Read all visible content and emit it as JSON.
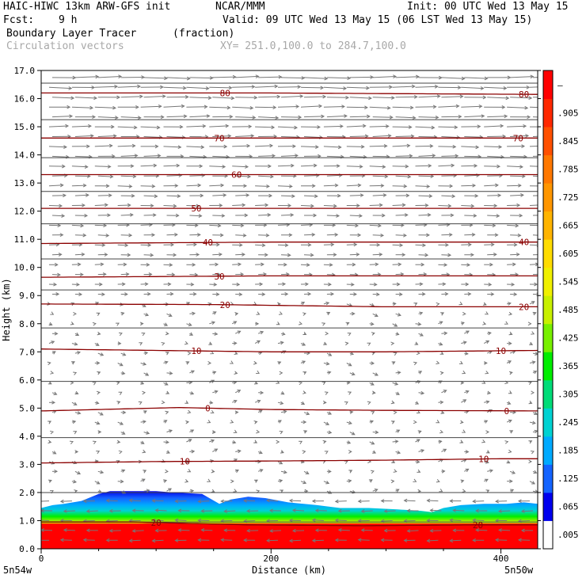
{
  "header": {
    "model": "HAIC-HIWC 13km ARW-GFS init",
    "org": "NCAR/MMM",
    "init": "Init: 00 UTC Wed 13 May 15",
    "fcst_label": "Fcst:",
    "fcst_value": "9 h",
    "valid": "Valid: 09 UTC Wed 13 May 15 (06 LST Wed 13 May 15)",
    "field_name": "Boundary Layer Tracer",
    "field_units": "(fraction)",
    "overlay_name": "Circulation vectors",
    "xy_range": "XY= 251.0,100.0 to 284.7,100.0"
  },
  "chart_data": {
    "type": "heatmap",
    "xlabel": "Distance (km)",
    "ylabel": "Height (km)",
    "xlim": [
      0,
      432
    ],
    "ylim": [
      0,
      17
    ],
    "x_ticks": [
      0,
      200,
      400
    ],
    "y_ticks": [
      "0.0",
      "1.0",
      "2.0",
      "3.0",
      "4.0",
      "5.0",
      "6.0",
      "7.0",
      "8.0",
      "9.0",
      "10.0",
      "11.0",
      "12.0",
      "13.0",
      "14.0",
      "15.0",
      "16.0",
      "17.0"
    ],
    "left_endpoint": "5n54w",
    "right_endpoint": "5n50w",
    "colorbar": {
      "labels": [
        ".005",
        ".065",
        ".125",
        ".185",
        ".245",
        ".305",
        ".365",
        ".425",
        ".485",
        ".545",
        ".605",
        ".665",
        ".725",
        ".785",
        ".845",
        ".905",
        "–"
      ],
      "colors": [
        "#ffffff",
        "#0000ee",
        "#1464ff",
        "#00aaff",
        "#00d2d2",
        "#00dc78",
        "#00ee00",
        "#78f000",
        "#c8f000",
        "#f0f000",
        "#ffdc00",
        "#ffb400",
        "#ff9600",
        "#ff7800",
        "#ff5000",
        "#ff2800",
        "#ff0000"
      ]
    },
    "tracer_top_km": [
      [
        0,
        1.45
      ],
      [
        10,
        1.55
      ],
      [
        20,
        1.6
      ],
      [
        35,
        1.7
      ],
      [
        50,
        1.95
      ],
      [
        60,
        2.05
      ],
      [
        80,
        2.05
      ],
      [
        100,
        2.05
      ],
      [
        115,
        2.0
      ],
      [
        140,
        1.95
      ],
      [
        155,
        1.6
      ],
      [
        165,
        1.75
      ],
      [
        180,
        1.85
      ],
      [
        195,
        1.8
      ],
      [
        215,
        1.65
      ],
      [
        240,
        1.55
      ],
      [
        260,
        1.45
      ],
      [
        285,
        1.45
      ],
      [
        310,
        1.4
      ],
      [
        330,
        1.35
      ],
      [
        340,
        1.3
      ],
      [
        350,
        1.45
      ],
      [
        365,
        1.55
      ],
      [
        385,
        1.6
      ],
      [
        405,
        1.6
      ],
      [
        420,
        1.65
      ],
      [
        432,
        1.6
      ]
    ],
    "temperature_contours": [
      {
        "value": 20,
        "label": "20",
        "label_x_km": [
          100,
          380
        ],
        "y_km": [
          [
            0,
            0.95
          ],
          [
            80,
            0.95
          ],
          [
            180,
            0.85
          ],
          [
            280,
            0.82
          ],
          [
            380,
            0.85
          ],
          [
            432,
            0.85
          ]
        ]
      },
      {
        "value": 10,
        "label": "10",
        "label_x_km": [
          125,
          385
        ],
        "y_km": [
          [
            0,
            3.05
          ],
          [
            100,
            3.1
          ],
          [
            200,
            3.12
          ],
          [
            300,
            3.15
          ],
          [
            400,
            3.2
          ],
          [
            432,
            3.2
          ]
        ]
      },
      {
        "value": 0,
        "label": "0",
        "label_x_km": [
          145,
          405
        ],
        "y_km": [
          [
            0,
            4.9
          ],
          [
            50,
            4.95
          ],
          [
            120,
            5.02
          ],
          [
            200,
            4.95
          ],
          [
            300,
            4.92
          ],
          [
            432,
            4.9
          ]
        ]
      },
      {
        "value": -10,
        "label": "10",
        "label_x_km": [
          135,
          400
        ],
        "y_km": [
          [
            0,
            7.1
          ],
          [
            100,
            7.05
          ],
          [
            200,
            7.0
          ],
          [
            300,
            7.0
          ],
          [
            432,
            7.05
          ]
        ]
      },
      {
        "value": -20,
        "label": "20",
        "label_x_km": [
          160,
          420
        ],
        "y_km": [
          [
            0,
            8.7
          ],
          [
            150,
            8.68
          ],
          [
            300,
            8.6
          ],
          [
            432,
            8.6
          ]
        ]
      },
      {
        "value": -30,
        "label": "30",
        "label_x_km": [
          155,
          0
        ],
        "y_km": [
          [
            0,
            9.65
          ],
          [
            200,
            9.7
          ],
          [
            432,
            9.7
          ]
        ]
      },
      {
        "value": -40,
        "label": "40",
        "label_x_km": [
          145,
          420
        ],
        "y_km": [
          [
            0,
            10.85
          ],
          [
            200,
            10.9
          ],
          [
            432,
            10.9
          ]
        ]
      },
      {
        "value": -50,
        "label": "50",
        "label_x_km": [
          135,
          0
        ],
        "y_km": [
          [
            0,
            12.1
          ],
          [
            200,
            12.1
          ],
          [
            432,
            12.1
          ]
        ]
      },
      {
        "value": -60,
        "label": "60",
        "label_x_km": [
          170,
          0
        ],
        "y_km": [
          [
            0,
            13.3
          ],
          [
            200,
            13.3
          ],
          [
            432,
            13.3
          ]
        ]
      },
      {
        "value": -70,
        "label": "70",
        "label_x_km": [
          155,
          415
        ],
        "y_km": [
          [
            0,
            14.6
          ],
          [
            200,
            14.6
          ],
          [
            432,
            14.6
          ]
        ]
      },
      {
        "value": -80,
        "label": "80",
        "label_x_km": [
          160,
          420
        ],
        "y_km": [
          [
            0,
            16.2
          ],
          [
            200,
            16.2
          ],
          [
            432,
            16.15
          ]
        ]
      }
    ],
    "extra_dark_contours_km": [
      0.95,
      2.0,
      3.95,
      5.95,
      7.85,
      9.2,
      10.3,
      11.55,
      12.7,
      13.9,
      15.25,
      16.55
    ]
  }
}
